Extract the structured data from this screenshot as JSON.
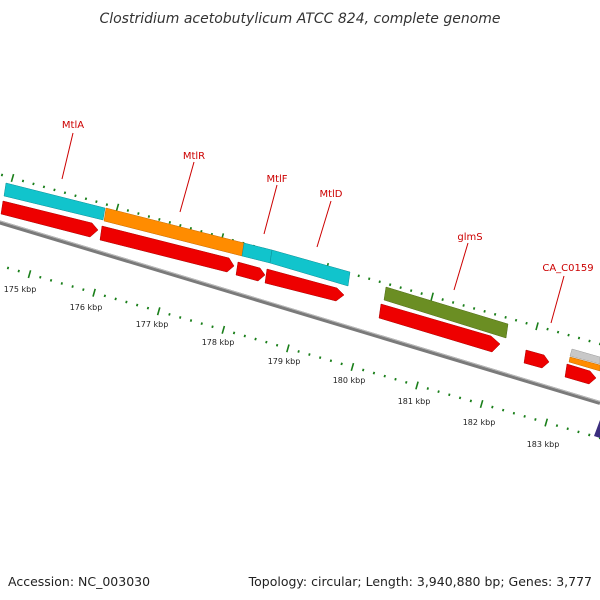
{
  "title": "Clostridium acetobutylicum ATCC 824, complete genome",
  "accession": "Accession: NC_003030",
  "topology": "Topology: circular; Length: 3,940,880 bp; Genes: 3,777",
  "colors": {
    "cds": "#ee0000",
    "cyan": "#11c4cc",
    "orange": "#ff8c00",
    "olive": "#6b8e23",
    "backbone": "#808080",
    "tick": "#1a7f1a",
    "label": "#cc0000"
  },
  "gene_labels": [
    "MtlA",
    "MtlR",
    "MtlF",
    "MtlD",
    "glmS",
    "CA_C0159"
  ],
  "kbp_labels": [
    "175 kbp",
    "176 kbp",
    "177 kbp",
    "178 kbp",
    "179 kbp",
    "180 kbp",
    "181 kbp",
    "182 kbp",
    "183 kbp"
  ]
}
